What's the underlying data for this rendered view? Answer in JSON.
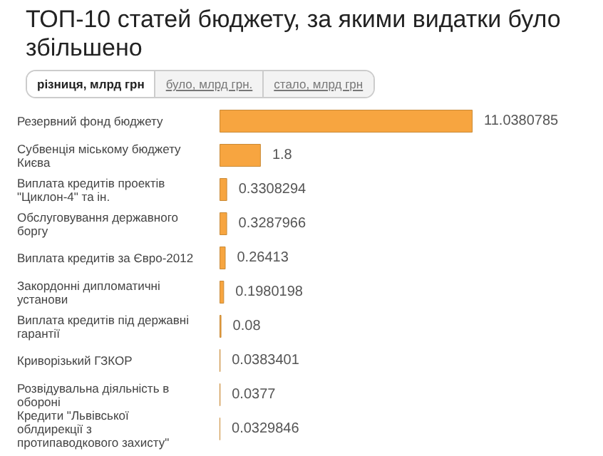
{
  "chart_data": {
    "type": "bar",
    "orientation": "horizontal",
    "title": "ТОП-10 статей бюджету, за якими видатки було збільшено",
    "annotations": [
      "різниця, млрд грн",
      "було, млрд грн.",
      "стало, млрд грн"
    ],
    "categories": [
      "Резервний фонд бюджету",
      "Субвенція міському бюджету Києва",
      "Виплата кредитів проектів \"Циклон-4\" та ін.",
      "Обслуговування державного боргу",
      "Виплата кредитів за Євро-2012",
      "Закордонні дипломатичні установи",
      "Виплата кредитів під державні гарантії",
      "Криворізький ГЗКОР",
      "Розвідувальна діяльність в обороні",
      "Кредити \"Львівської облдирекції з протипаводкового захисту\""
    ],
    "values": [
      11.0380785,
      1.8,
      0.3308294,
      0.3287966,
      0.26413,
      0.1980198,
      0.08,
      0.0383401,
      0.0377,
      0.0329846
    ],
    "color": "#f7a540",
    "data_labels": true
  }
}
